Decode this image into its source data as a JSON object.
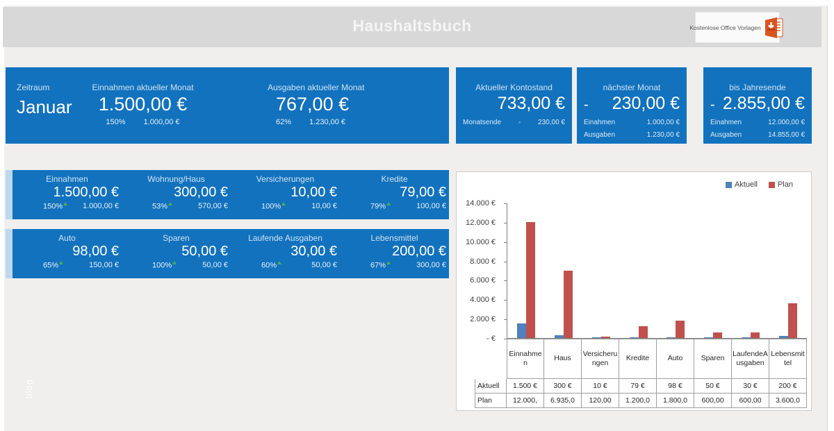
{
  "header": {
    "title": "Haushaltsbuch",
    "logo_text": "Kostenlose Office Vorlagen"
  },
  "watermark": "blog",
  "colors": {
    "panel_blue": "#1272bd",
    "stripe_light_blue": "#bdd7ee",
    "header_gray": "#d8d8d8",
    "logo_orange": "#d9541e",
    "chart_aktuell_blue": "#4f81bd",
    "chart_plan_red": "#c0504d"
  },
  "summary": {
    "zeitraum": {
      "label": "Zeitraum",
      "value": "Januar"
    },
    "einnahmen": {
      "label": "Einnahmen aktueller Monat",
      "value": "1.500,00 €",
      "percent": "150%",
      "plan": "1.000,00 €"
    },
    "ausgaben": {
      "label": "Ausgaben aktueller Monat",
      "value": "767,00 €",
      "percent": "62%",
      "plan": "1.230,00 €"
    },
    "kontostand": {
      "label": "Aktueller Kontostand",
      "value": "733,00 €",
      "row_label": "Monatsende",
      "row_sign": "-",
      "row_value": "230,00 €"
    },
    "naechster_monat": {
      "label": "nächster Monat",
      "sign": "-",
      "value": "230,00 €",
      "rows": [
        {
          "label": "Einahmen",
          "value": "1.000,00 €"
        },
        {
          "label": "Ausgaben",
          "value": "1.230,00 €"
        }
      ]
    },
    "jahresende": {
      "label": "bis Jahresende",
      "sign": "-",
      "value": "2.855,00 €",
      "rows": [
        {
          "label": "Einahmen",
          "value": "12.000,00 €"
        },
        {
          "label": "Ausgaben",
          "value": "14.855,00 €"
        }
      ]
    }
  },
  "categories_row1": [
    {
      "label": "Einnahmen",
      "value": "1.500,00 €",
      "percent": "150%",
      "plan": "1.000,00 €"
    },
    {
      "label": "Wohnung/Haus",
      "value": "300,00 €",
      "percent": "53%",
      "plan": "570,00 €"
    },
    {
      "label": "Versicherungen",
      "value": "10,00 €",
      "percent": "100%",
      "plan": "10,00 €"
    },
    {
      "label": "Kredite",
      "value": "79,00 €",
      "percent": "79%",
      "plan": "100,00 €"
    }
  ],
  "categories_row2": [
    {
      "label": "Auto",
      "value": "98,00 €",
      "percent": "65%",
      "plan": "150,00 €"
    },
    {
      "label": "Sparen",
      "value": "50,00 €",
      "percent": "100%",
      "plan": "50,00 €"
    },
    {
      "label": "Laufende Ausgaben",
      "value": "30,00 €",
      "percent": "60%",
      "plan": "50,00 €"
    },
    {
      "label": "Lebensmittel",
      "value": "200,00 €",
      "percent": "67%",
      "plan": "300,00 €"
    }
  ],
  "chart_data": {
    "type": "bar",
    "categories": [
      "Einnahmen",
      "Haus",
      "Versicherungen",
      "Kredite",
      "Auto",
      "Sparen",
      "LaufendeAusgaben",
      "Lebensmittel"
    ],
    "series": [
      {
        "name": "Aktuell",
        "color": "#4f81bd",
        "values": [
          1500,
          300,
          10,
          79,
          98,
          50,
          30,
          200
        ]
      },
      {
        "name": "Plan",
        "color": "#c0504d",
        "values": [
          12000,
          6935,
          120,
          1200,
          1800,
          600,
          600,
          3600
        ]
      }
    ],
    "ylim": [
      0,
      14000
    ],
    "ytick_step": 2000,
    "ytick_labels": [
      "-  €",
      "2.000 €",
      "4.000 €",
      "6.000 €",
      "8.000 €",
      "10.000 €",
      "12.000 €",
      "14.000 €"
    ],
    "legend_position": "top-right",
    "grid": false,
    "table": {
      "row_labels": [
        "Aktuell",
        "Plan"
      ],
      "rows": [
        [
          "1.500 €",
          "300 €",
          "10 €",
          "79 €",
          "98 €",
          "50 €",
          "30 €",
          "200 €"
        ],
        [
          "12.000,",
          "6.935,0",
          "120,00",
          "1.200,0",
          "1.800,0",
          "600,00",
          "600,00",
          "3.600,0"
        ]
      ]
    }
  }
}
